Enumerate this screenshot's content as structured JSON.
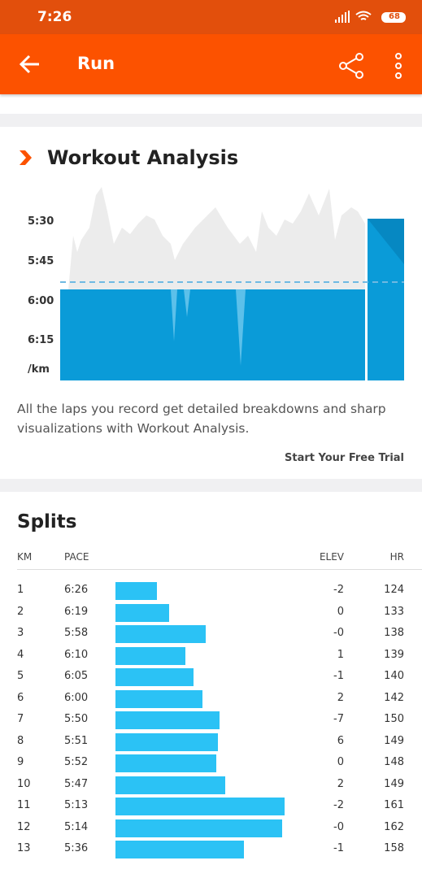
{
  "status_bar": {
    "time": "7:26",
    "battery": "68"
  },
  "app_bar": {
    "title": "Run"
  },
  "analysis": {
    "title": "Workout Analysis",
    "axis_labels": [
      "5:30",
      "5:45",
      "6:00",
      "6:15",
      "/km"
    ],
    "description": "All the laps you record get detailed breakdowns and sharp visualizations with Workout Analysis.",
    "cta": "Start Your Free Trial"
  },
  "splits": {
    "title": "Splits",
    "columns": [
      "KM",
      "PACE",
      "ELEV",
      "HR"
    ],
    "rows": [
      {
        "km": "1",
        "pace": "6:26",
        "elev": "-2",
        "hr": "124"
      },
      {
        "km": "2",
        "pace": "6:19",
        "elev": "0",
        "hr": "133"
      },
      {
        "km": "3",
        "pace": "5:58",
        "elev": "-0",
        "hr": "138"
      },
      {
        "km": "4",
        "pace": "6:10",
        "elev": "1",
        "hr": "139"
      },
      {
        "km": "5",
        "pace": "6:05",
        "elev": "-1",
        "hr": "140"
      },
      {
        "km": "6",
        "pace": "6:00",
        "elev": "2",
        "hr": "142"
      },
      {
        "km": "7",
        "pace": "5:50",
        "elev": "-7",
        "hr": "150"
      },
      {
        "km": "8",
        "pace": "5:51",
        "elev": "6",
        "hr": "149"
      },
      {
        "km": "9",
        "pace": "5:52",
        "elev": "0",
        "hr": "148"
      },
      {
        "km": "10",
        "pace": "5:47",
        "elev": "2",
        "hr": "149"
      },
      {
        "km": "11",
        "pace": "5:13",
        "elev": "-2",
        "hr": "161"
      },
      {
        "km": "12",
        "pace": "5:14",
        "elev": "-0",
        "hr": "162"
      },
      {
        "km": "13",
        "pace": "5:36",
        "elev": "-1",
        "hr": "158"
      }
    ]
  }
}
